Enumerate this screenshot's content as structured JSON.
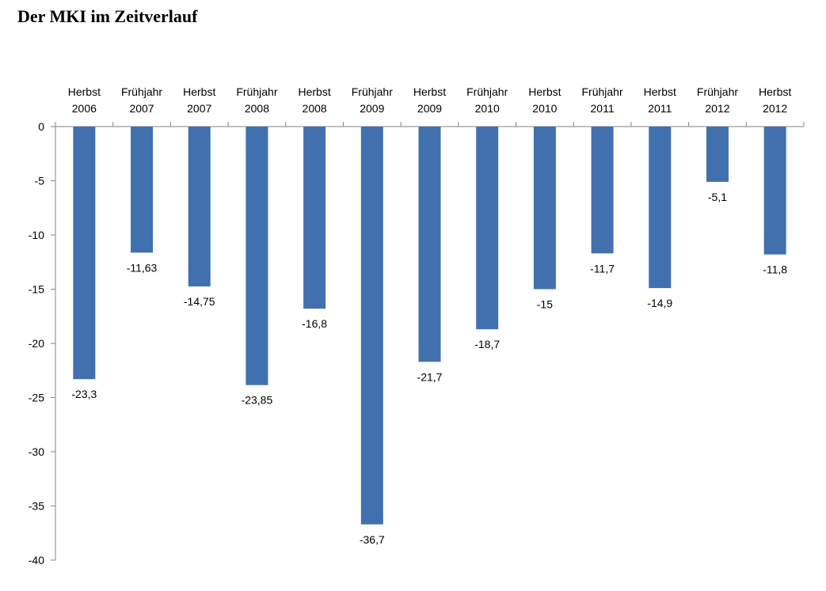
{
  "title": "Der MKI im Zeitverlauf",
  "chart_data": {
    "type": "bar",
    "categories": [
      [
        "Herbst",
        "2006"
      ],
      [
        "Frühjahr",
        "2007"
      ],
      [
        "Herbst",
        "2007"
      ],
      [
        "Frühjahr",
        "2008"
      ],
      [
        "Herbst",
        "2008"
      ],
      [
        "Frühjahr",
        "2009"
      ],
      [
        "Herbst",
        "2009"
      ],
      [
        "Frühjahr",
        "2010"
      ],
      [
        "Herbst",
        "2010"
      ],
      [
        "Frühjahr",
        "2011"
      ],
      [
        "Herbst",
        "2011"
      ],
      [
        "Frühjahr",
        "2012"
      ],
      [
        "Herbst",
        "2012"
      ]
    ],
    "values": [
      -23.3,
      -11.63,
      -14.75,
      -23.85,
      -16.8,
      -36.7,
      -21.7,
      -18.7,
      -15,
      -11.7,
      -14.9,
      -5.1,
      -11.8
    ],
    "data_labels": [
      "-23,3",
      "-11,63",
      "-14,75",
      "-23,85",
      "-16,8",
      "-36,7",
      "-21,7",
      "-18,7",
      "-15",
      "-11,7",
      "-14,9",
      "-5,1",
      "-11,8"
    ],
    "ylim": [
      -40,
      0
    ],
    "yticks": [
      0,
      -5,
      -10,
      -15,
      -20,
      -25,
      -30,
      -35,
      -40
    ],
    "category_axis_position": "top",
    "bar_color": "#4170AE",
    "grid": false,
    "legend": "none",
    "xlabel": "",
    "ylabel": ""
  }
}
